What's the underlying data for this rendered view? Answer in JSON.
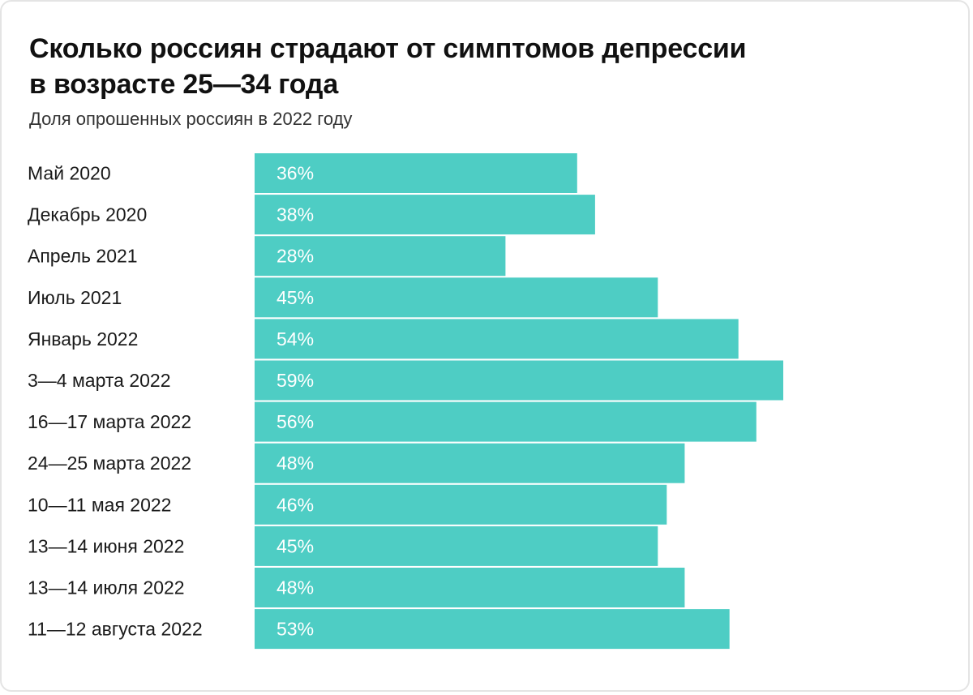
{
  "title_line1": "Сколько россиян страдают от симптомов депрессии",
  "title_line2": "в возрасте 25—34 года",
  "subtitle": "Доля опрошенных россиян в 2022 году",
  "chart_data": {
    "type": "bar",
    "orientation": "horizontal",
    "categories": [
      "Май 2020",
      "Декабрь 2020",
      "Апрель 2021",
      "Июль 2021",
      "Январь 2022",
      "3—4 марта 2022",
      "16—17 марта 2022",
      "24—25 марта 2022",
      "10—11 мая 2022",
      "13—14 июня 2022",
      "13—14 июля 2022",
      "11—12 августа 2022"
    ],
    "values": [
      36,
      38,
      28,
      45,
      54,
      59,
      56,
      48,
      46,
      45,
      48,
      53
    ],
    "value_labels": [
      "36%",
      "38%",
      "28%",
      "45%",
      "54%",
      "59%",
      "56%",
      "48%",
      "46%",
      "45%",
      "48%",
      "53%"
    ],
    "unit": "%",
    "xlim": [
      0,
      100
    ],
    "grid": false,
    "legend": "none",
    "bar_color": "#4ecdc4",
    "label_color": "#ffffff"
  }
}
